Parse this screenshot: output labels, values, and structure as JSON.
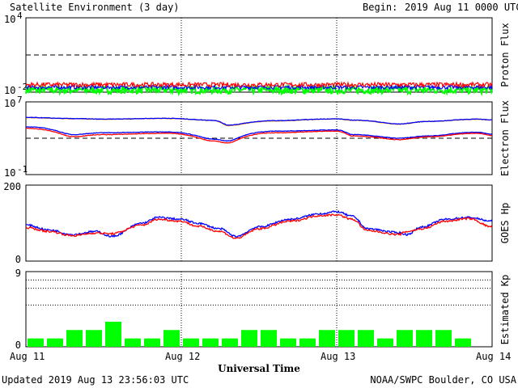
{
  "header": {
    "title": "Satellite Environment (3 day)",
    "begin_label": "Begin:",
    "begin_value": "2019 Aug 11 0000 UTC"
  },
  "footer": {
    "updated": "Updated 2019 Aug 13 23:56:03 UTC",
    "credit": "NOAA/SWPC Boulder, CO USA",
    "xlabel": "Universal Time"
  },
  "x_ticks": [
    "Aug 11",
    "Aug 12",
    "Aug 13",
    "Aug 14"
  ],
  "colors": {
    "red": "#ff0000",
    "blue": "#0000ff",
    "green": "#00ff00",
    "orange": "#ff9900",
    "black": "#000000"
  },
  "chart_data": [
    {
      "type": "line",
      "ylabel": "Proton Flux",
      "yscale": "log",
      "ylim": [
        0.01,
        10000
      ],
      "y_tick_labels": [
        {
          "base": "10",
          "exp": "4"
        },
        {
          "base": "10",
          "exp": "-2"
        }
      ],
      "threshold": 10,
      "x_days": [
        0,
        3
      ],
      "series": [
        {
          "color": "red",
          "level": 0.04,
          "noise": 0.18
        },
        {
          "color": "blue",
          "level": 0.025,
          "noise": 0.15
        },
        {
          "color": "green",
          "level": 0.015,
          "noise": 0.3
        }
      ]
    },
    {
      "type": "line",
      "ylabel": "Electron Flux",
      "yscale": "log",
      "ylim": [
        0.1,
        10000000
      ],
      "y_tick_labels": [
        {
          "base": "10",
          "exp": "7"
        },
        {
          "base": "10",
          "exp": "-1"
        }
      ],
      "threshold": 1000,
      "x_days": [
        0,
        3
      ],
      "series": [
        {
          "color": "orange",
          "x": [
            0,
            0.3,
            0.5,
            0.9,
            1.2,
            1.3,
            1.6,
            2.0,
            2.1,
            2.4,
            2.6,
            2.9,
            3.0
          ],
          "y": [
            180000,
            140000,
            120000,
            150000,
            90000,
            25000,
            80000,
            130000,
            95000,
            35000,
            70000,
            120000,
            100000
          ]
        },
        {
          "color": "blue",
          "x": [
            0,
            0.3,
            0.5,
            0.9,
            1.2,
            1.3,
            1.6,
            2.0,
            2.1,
            2.4,
            2.6,
            2.9,
            3.0
          ],
          "y": [
            190000,
            145000,
            125000,
            155000,
            95000,
            28000,
            85000,
            135000,
            100000,
            37000,
            72000,
            125000,
            105000
          ]
        },
        {
          "color": "blue",
          "x": [
            0,
            0.3,
            0.5,
            0.9,
            1.2,
            1.3,
            1.6,
            2.0,
            2.1,
            2.4,
            2.6,
            2.9,
            3.0
          ],
          "y": [
            18000,
            2500,
            4000,
            5000,
            800,
            500,
            6000,
            8000,
            2500,
            1000,
            1800,
            4500,
            2800
          ]
        },
        {
          "color": "red",
          "x": [
            0,
            0.3,
            0.5,
            0.9,
            1.2,
            1.3,
            1.6,
            2.0,
            2.1,
            2.4,
            2.6,
            2.9,
            3.0
          ],
          "y": [
            12000,
            1500,
            2500,
            3500,
            500,
            300,
            4000,
            6000,
            1800,
            700,
            1400,
            3500,
            2000
          ]
        }
      ]
    },
    {
      "type": "line",
      "ylabel": "GOES Hp",
      "ylim": [
        0,
        200
      ],
      "y_tick_labels": [
        "200",
        "0"
      ],
      "x_days": [
        0,
        3
      ],
      "series": [
        {
          "color": "blue",
          "x": [
            0,
            0.15,
            0.3,
            0.45,
            0.55,
            0.75,
            0.85,
            1.0,
            1.1,
            1.25,
            1.35,
            1.5,
            1.7,
            1.9,
            2.0,
            2.1,
            2.2,
            2.4,
            2.45,
            2.55,
            2.7,
            2.85,
            3.0
          ],
          "y": [
            95,
            82,
            70,
            78,
            65,
            100,
            115,
            110,
            100,
            85,
            65,
            90,
            110,
            125,
            130,
            118,
            85,
            75,
            70,
            90,
            110,
            115,
            105
          ]
        },
        {
          "color": "red",
          "x": [
            0,
            0.15,
            0.3,
            0.45,
            0.55,
            0.75,
            0.85,
            1.0,
            1.1,
            1.25,
            1.35,
            1.5,
            1.7,
            1.9,
            2.0,
            2.1,
            2.2,
            2.4,
            2.45,
            2.55,
            2.7,
            2.85,
            3.0
          ],
          "y": [
            88,
            78,
            67,
            74,
            72,
            95,
            110,
            105,
            92,
            78,
            60,
            85,
            105,
            120,
            122,
            110,
            80,
            70,
            78,
            85,
            105,
            112,
            90
          ]
        }
      ]
    },
    {
      "type": "bar",
      "ylabel": "Estimated Kp",
      "ylim": [
        0,
        9
      ],
      "y_tick_labels": [
        "9",
        "0"
      ],
      "dotted_levels": [
        5,
        7,
        8
      ],
      "bar_color": "green",
      "bar_interval_hours": 3,
      "values": [
        1,
        1,
        2,
        2,
        3,
        1,
        1,
        2,
        1,
        1,
        1,
        2,
        2,
        1,
        1,
        2,
        2,
        2,
        1,
        2,
        2,
        2,
        1,
        0
      ]
    }
  ]
}
